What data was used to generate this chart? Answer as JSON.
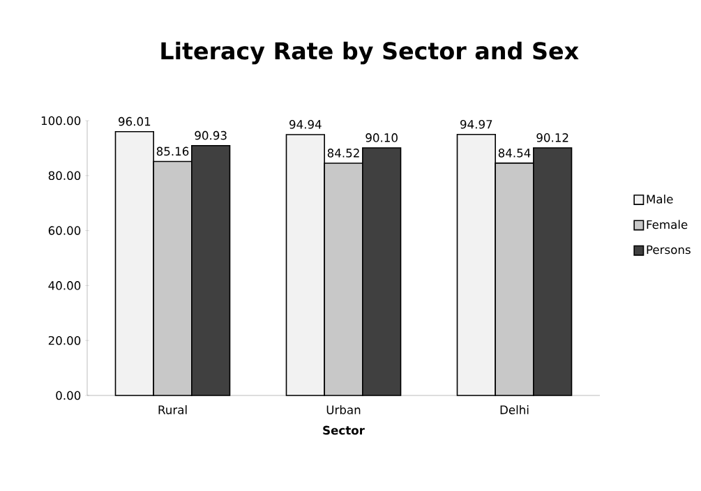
{
  "chart_data": {
    "type": "bar",
    "title": "Literacy Rate by Sector and Sex",
    "xlabel": "Sector",
    "categories": [
      "Rural",
      "Urban",
      "Delhi"
    ],
    "series": [
      {
        "name": "Male",
        "color": "#f2f2f2",
        "values": [
          96.01,
          94.94,
          94.97
        ],
        "value_labels": [
          "96.01",
          "94.94",
          "94.97"
        ]
      },
      {
        "name": "Female",
        "color": "#c8c8c8",
        "values": [
          85.16,
          84.52,
          84.54
        ],
        "value_labels": [
          "85.16",
          "84.52",
          "84.54"
        ]
      },
      {
        "name": "Persons",
        "color": "#404040",
        "values": [
          90.93,
          90.1,
          90.12
        ],
        "value_labels": [
          "90.93",
          "90.10",
          "90.12"
        ]
      }
    ],
    "ylim": [
      0,
      100
    ],
    "yticks": [
      {
        "value": 0,
        "label": "0.00"
      },
      {
        "value": 20,
        "label": "20.00"
      },
      {
        "value": 40,
        "label": "40.00"
      },
      {
        "value": 60,
        "label": "60.00"
      },
      {
        "value": 80,
        "label": "80.00"
      },
      {
        "value": 100,
        "label": "100.00"
      }
    ],
    "grid": false,
    "legend": "right"
  }
}
